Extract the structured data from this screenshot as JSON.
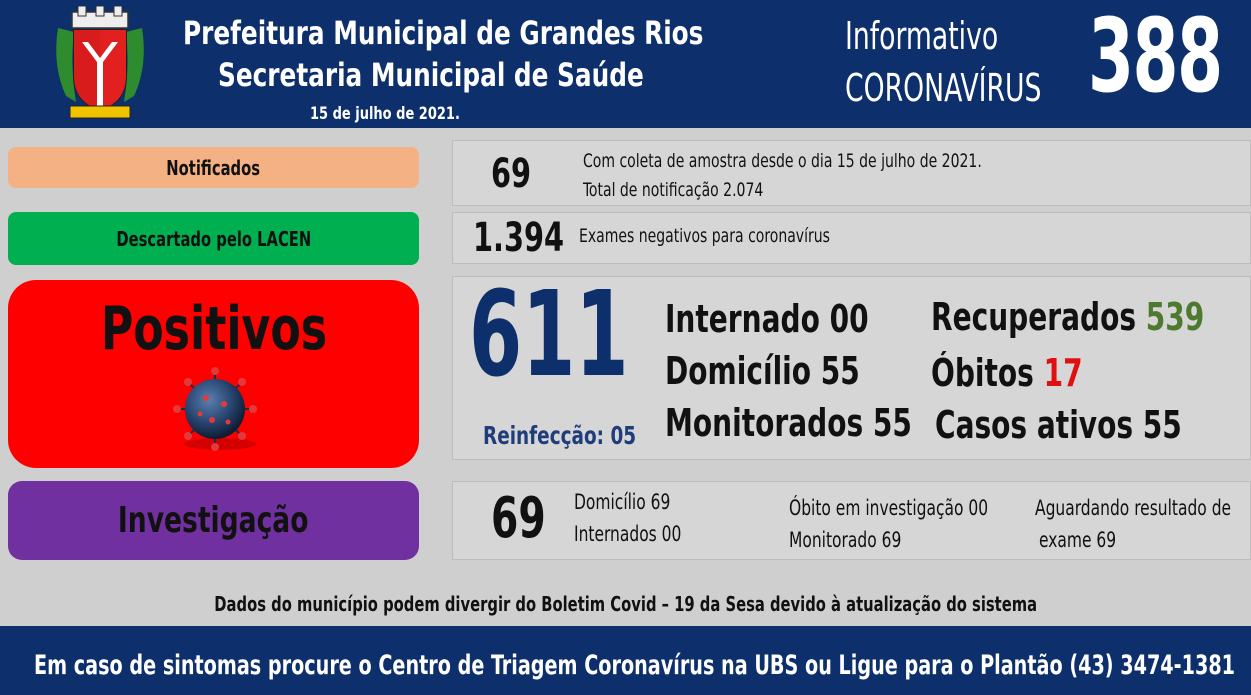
{
  "header": {
    "title_line1": "Prefeitura Municipal de Grandes Rios",
    "title_line2": "Secretaria Municipal de Saúde",
    "date": "15 de julho de 2021.",
    "informativo": "Informativo",
    "subject": "CORONAVÍRUS",
    "edition_number": "388",
    "crest_icon": "municipal-coat-of-arms-icon"
  },
  "notificados": {
    "label": "Notificados",
    "value": "69",
    "detail_line1": "Com coleta de amostra desde o dia 15 de julho de 2021.",
    "detail_line2": "Total de notificação  2.074",
    "color": "#f4b183"
  },
  "descartado": {
    "label": "Descartado  pelo LACEN",
    "value": "1.394",
    "detail": "Exames negativos  para coronavírus",
    "color": "#00b050"
  },
  "positivos": {
    "label": "Positivos",
    "value": "611",
    "reinfeccao": "Reinfecção: 05",
    "internado": "Internado 00",
    "domicilio": "Domicílio 55",
    "monitorados": "Monitorados 55",
    "recuperados_label": "Recuperados",
    "recuperados_value": "539",
    "obitos_label": "Óbitos",
    "obitos_value": "17",
    "casos_ativos": "Casos ativos 55",
    "color": "#ff0000",
    "icon": "coronavirus-icon"
  },
  "investigacao": {
    "label": "Investigação",
    "value": "69",
    "domicilio": "Domicílio  69",
    "internados": "Internados 00",
    "obito_inv": "Óbito  em investigação  00",
    "monitorado": "Monitorado  69",
    "aguardando_line1": "Aguardando resultado de",
    "aguardando_line2": "exame 69",
    "color": "#7030a0"
  },
  "footnote": "Dados do município  podem  divergir do Boletim  Covid – 19 da Sesa devido à atualização  do sistema",
  "footer": "Em caso de sintomas  procure  o Centro de Triagem  Coronavírus  na UBS ou Ligue  para o Plantão  (43) 3474-1381",
  "colors": {
    "header_bg": "#0d2f6b",
    "recuperados_value": "#4e7a2e",
    "obitos_value": "#e01010",
    "positivos_number": "#0d2f6b"
  }
}
